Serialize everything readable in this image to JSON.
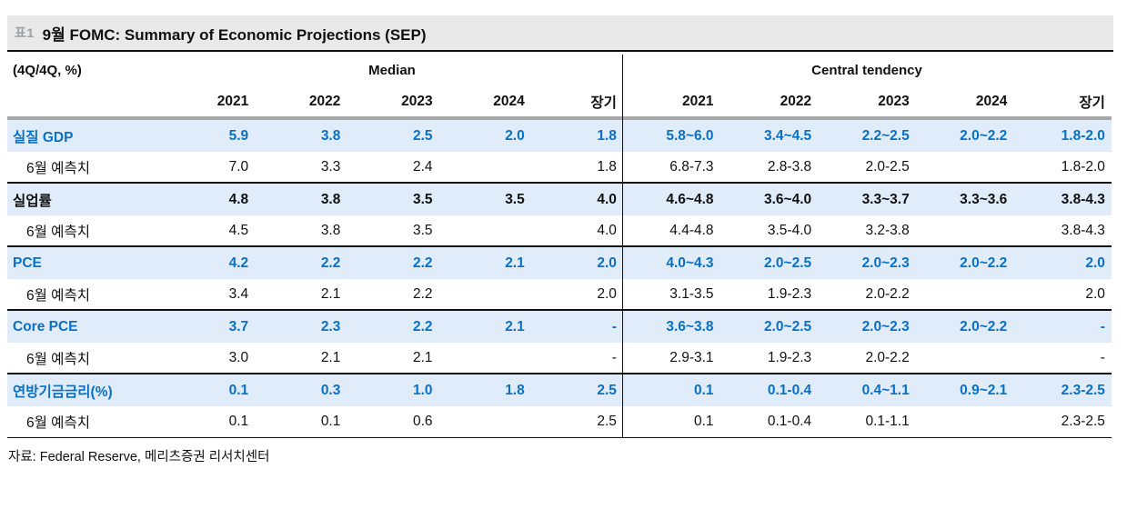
{
  "ui": {
    "title_tag": "표1",
    "title_text": "9월  FOMC: Summary of Economic Projections (SEP)",
    "unit_label": "(4Q/4Q, %)",
    "source": "자료: Federal Reserve,  메리츠증권  리서치센터"
  },
  "colors": {
    "accent_blue": "#0a70c4",
    "row_highlight": "#e0ecf9",
    "title_bar_bg": "#e9e9e9",
    "tag_gray": "#9b9fa3",
    "thick_rule_gray": "#a8a8a8"
  },
  "chart_data": {
    "type": "table",
    "title": "9월 FOMC: Summary of Economic Projections (SEP)",
    "unit": "(4Q/4Q, %)",
    "column_groups": [
      {
        "label": "Median"
      },
      {
        "label": "Central tendency"
      }
    ],
    "columns": [
      "2021",
      "2022",
      "2023",
      "2024",
      "장기"
    ],
    "rows": [
      {
        "label": "실질  GDP",
        "type": "metric",
        "color": "blue",
        "median": [
          "5.9",
          "3.8",
          "2.5",
          "2.0",
          "1.8"
        ],
        "central": [
          "5.8~6.0",
          "3.4~4.5",
          "2.2~2.5",
          "2.0~2.2",
          "1.8-2.0"
        ]
      },
      {
        "label": "6월  예측치",
        "type": "forecast",
        "color": "black",
        "median": [
          "7.0",
          "3.3",
          "2.4",
          "",
          "1.8"
        ],
        "central": [
          "6.8-7.3",
          "2.8-3.8",
          "2.0-2.5",
          "",
          "1.8-2.0"
        ]
      },
      {
        "label": "실업률",
        "type": "metric",
        "color": "black",
        "median": [
          "4.8",
          "3.8",
          "3.5",
          "3.5",
          "4.0"
        ],
        "central": [
          "4.6~4.8",
          "3.6~4.0",
          "3.3~3.7",
          "3.3~3.6",
          "3.8-4.3"
        ]
      },
      {
        "label": "6월  예측치",
        "type": "forecast",
        "color": "black",
        "median": [
          "4.5",
          "3.8",
          "3.5",
          "",
          "4.0"
        ],
        "central": [
          "4.4-4.8",
          "3.5-4.0",
          "3.2-3.8",
          "",
          "3.8-4.3"
        ]
      },
      {
        "label": "PCE",
        "type": "metric",
        "color": "blue",
        "median": [
          "4.2",
          "2.2",
          "2.2",
          "2.1",
          "2.0"
        ],
        "central": [
          "4.0~4.3",
          "2.0~2.5",
          "2.0~2.3",
          "2.0~2.2",
          "2.0"
        ]
      },
      {
        "label": "6월  예측치",
        "type": "forecast",
        "color": "black",
        "median": [
          "3.4",
          "2.1",
          "2.2",
          "",
          "2.0"
        ],
        "central": [
          "3.1-3.5",
          "1.9-2.3",
          "2.0-2.2",
          "",
          "2.0"
        ]
      },
      {
        "label": "Core PCE",
        "type": "metric",
        "color": "blue",
        "median": [
          "3.7",
          "2.3",
          "2.2",
          "2.1",
          "-"
        ],
        "central": [
          "3.6~3.8",
          "2.0~2.5",
          "2.0~2.3",
          "2.0~2.2",
          "-"
        ]
      },
      {
        "label": "6월  예측치",
        "type": "forecast",
        "color": "black",
        "median": [
          "3.0",
          "2.1",
          "2.1",
          "",
          "-"
        ],
        "central": [
          "2.9-3.1",
          "1.9-2.3",
          "2.0-2.2",
          "",
          "-"
        ]
      },
      {
        "label": "연방기금금리(%)",
        "type": "metric",
        "color": "blue",
        "median": [
          "0.1",
          "0.3",
          "1.0",
          "1.8",
          "2.5"
        ],
        "central": [
          "0.1",
          "0.1-0.4",
          "0.4~1.1",
          "0.9~2.1",
          "2.3-2.5"
        ]
      },
      {
        "label": "6월  예측치",
        "type": "forecast",
        "color": "black",
        "median": [
          "0.1",
          "0.1",
          "0.6",
          "",
          "2.5"
        ],
        "central": [
          "0.1",
          "0.1-0.4",
          "0.1-1.1",
          "",
          "2.3-2.5"
        ]
      }
    ],
    "layout": {
      "grid": "off",
      "vertical_divider_between_groups": true,
      "source_row": "자료: Federal Reserve, 메리츠증권 리서치센터"
    }
  }
}
